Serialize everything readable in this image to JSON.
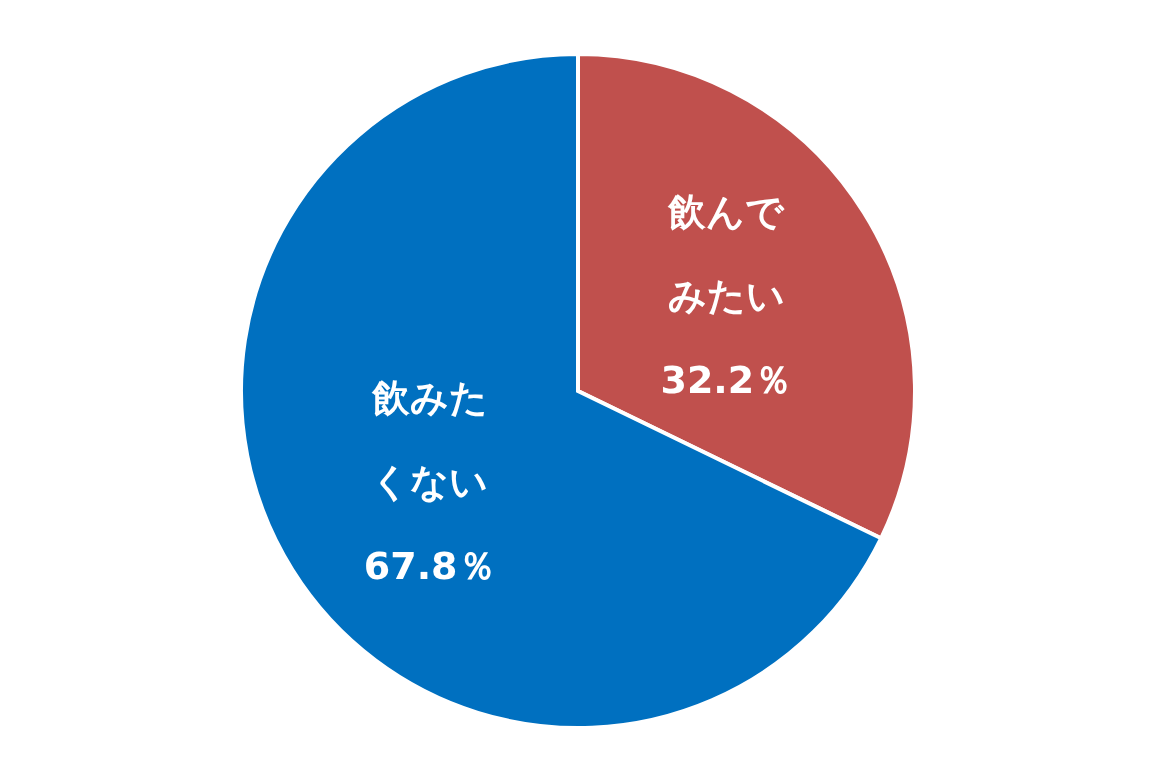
{
  "chart_data": {
    "type": "pie",
    "categories": [
      "飲んでみたい",
      "飲みたくない"
    ],
    "values": [
      32.2,
      67.8
    ],
    "colors": [
      "#c0504d",
      "#0070c0"
    ],
    "value_labels": [
      "32.2％",
      "67.8％"
    ]
  }
}
